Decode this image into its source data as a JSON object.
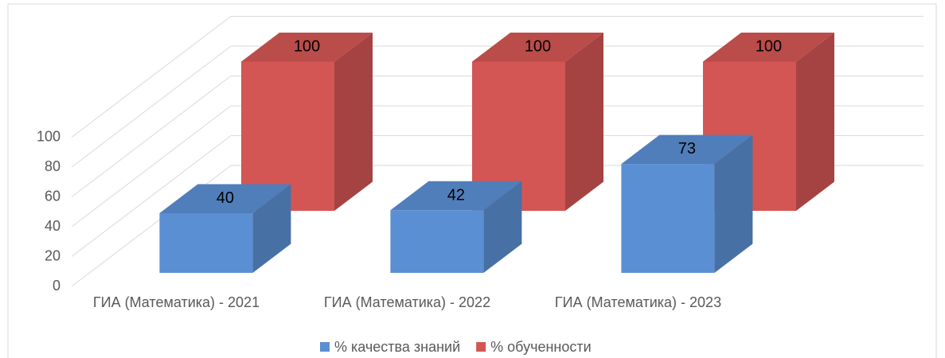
{
  "chart_data": {
    "type": "bar3d",
    "categories": [
      "ГИА (Математика) - 2021",
      "ГИА (Математика) - 2022",
      "ГИА (Математика) - 2023"
    ],
    "series": [
      {
        "name": "% качества знаний",
        "color": "#5b8fd3",
        "values": [
          40,
          42,
          73
        ]
      },
      {
        "name": "% обученности",
        "color": "#d35654",
        "values": [
          100,
          100,
          100
        ]
      }
    ],
    "ylim": [
      0,
      100
    ],
    "yticks": [
      0,
      20,
      40,
      60,
      80,
      100
    ],
    "grid": true,
    "legend": "bottom"
  }
}
